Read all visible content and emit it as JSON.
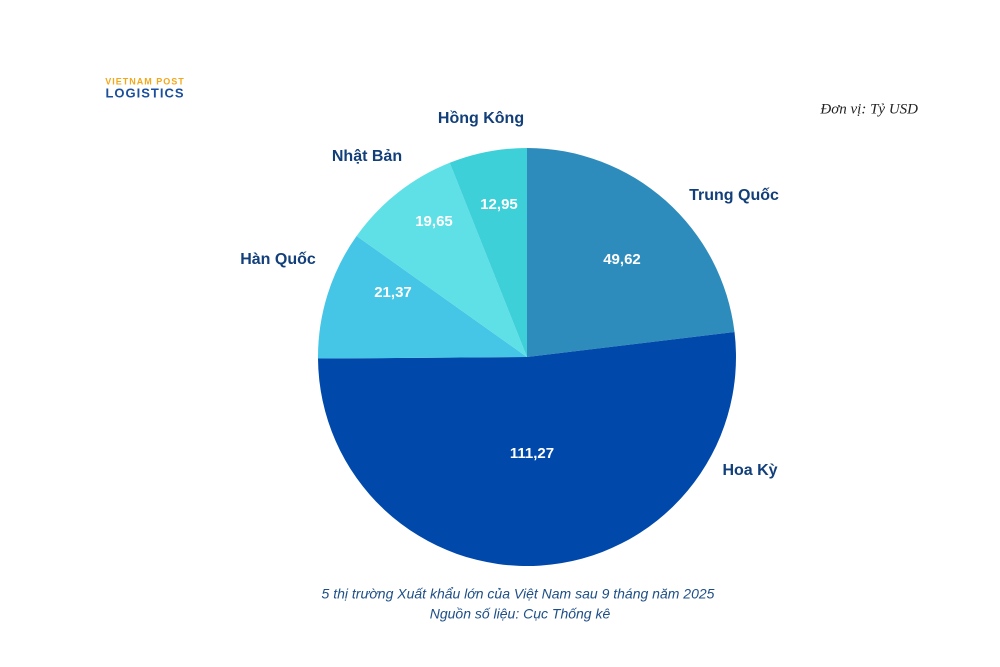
{
  "logo": {
    "line1": "VIETNAM POST",
    "line2": "LOGISTICS"
  },
  "unit": "Đơn vị: Tỷ USD",
  "chart_data": {
    "type": "pie",
    "categories": [
      "Trung Quốc",
      "Hoa Kỳ",
      "Hàn Quốc",
      "Nhật Bản",
      "Hồng Kông"
    ],
    "values": [
      49.62,
      111.27,
      21.37,
      19.65,
      12.95
    ],
    "value_labels": [
      "49,62",
      "111,27",
      "21,37",
      "19,65",
      "12,95"
    ],
    "colors": [
      "#2e8cbd",
      "#0049ab",
      "#45c6e6",
      "#5ee0e6",
      "#3dd0d8"
    ],
    "caption": [
      "5 thị trường Xuất khẩu lớn của Việt Nam  sau 9 tháng năm 2025",
      "Nguồn số liệu: Cục Thống kê"
    ]
  }
}
